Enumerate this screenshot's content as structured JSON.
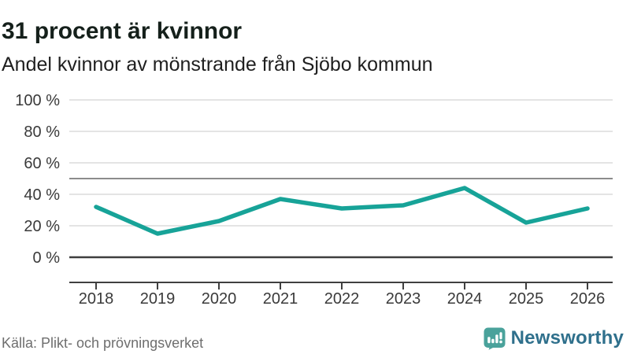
{
  "header": {
    "title": "31 procent är kvinnor",
    "subtitle": "Andel kvinnor av mönstrande från Sjöbo kommun"
  },
  "chart_data": {
    "type": "line",
    "title": "31 procent är kvinnor",
    "subtitle": "Andel kvinnor av mönstrande från Sjöbo kommun",
    "x": [
      2018,
      2019,
      2020,
      2021,
      2022,
      2023,
      2024,
      2025,
      2026
    ],
    "x_labels": [
      "2018",
      "2019",
      "2020",
      "2021",
      "2022",
      "2023",
      "2024",
      "2025",
      "2026"
    ],
    "series": [
      {
        "name": "Andel kvinnor av mönstrande",
        "values": [
          32,
          15,
          23,
          37,
          31,
          33,
          44,
          22,
          31
        ]
      }
    ],
    "unit": "%",
    "ylim": [
      0,
      100
    ],
    "yticks": [
      100,
      80,
      60,
      40,
      20,
      0
    ],
    "ytick_labels": [
      "100 %",
      "80 %",
      "60 %",
      "40 %",
      "20 %",
      "0 %"
    ],
    "reference_line": 50,
    "grid": "horizontal",
    "legend": "none",
    "line_color": "#17a398"
  },
  "footer": {
    "source": "Källa: Plikt- och prövningsverket",
    "brand": "Newsworthy"
  },
  "colors": {
    "accent_teal": "#17a398",
    "grid_light": "#e4e4e4",
    "grid_ref": "#8c8c8c",
    "axis_dark": "#3f3f3f",
    "tick_text": "#3a3a3a",
    "source_text": "#6e6e6e",
    "brand_text": "#2f708c",
    "brand_badge": "#4aa29b"
  }
}
